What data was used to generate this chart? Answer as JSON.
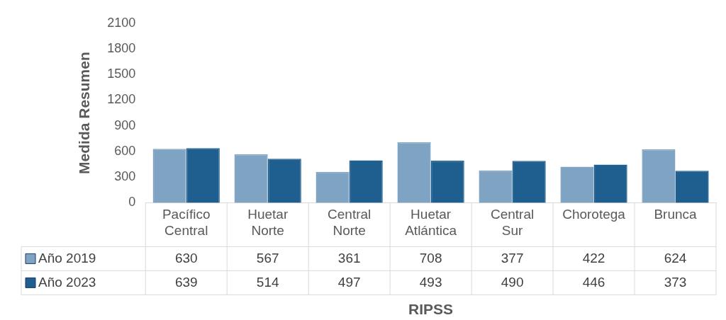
{
  "chart_data": {
    "type": "bar",
    "xlabel": "RIPSS",
    "ylabel": "Medida Resumen",
    "categories": [
      "Pacífico Central",
      "Huetar Norte",
      "Central Norte",
      "Huetar Atlántica",
      "Central Sur",
      "Chorotega",
      "Brunca"
    ],
    "series": [
      {
        "name": "Año 2019",
        "color": "#7fa3c2",
        "values": [
          630,
          567,
          361,
          708,
          377,
          422,
          624
        ]
      },
      {
        "name": "Año 2023",
        "color": "#1f5f8f",
        "values": [
          639,
          514,
          497,
          493,
          490,
          446,
          373
        ]
      }
    ],
    "ylim": [
      0,
      2100
    ],
    "yticks": [
      0,
      300,
      600,
      900,
      1200,
      1500,
      1800,
      2100
    ],
    "grid": false,
    "data_labels": true,
    "legend": "bottom"
  }
}
